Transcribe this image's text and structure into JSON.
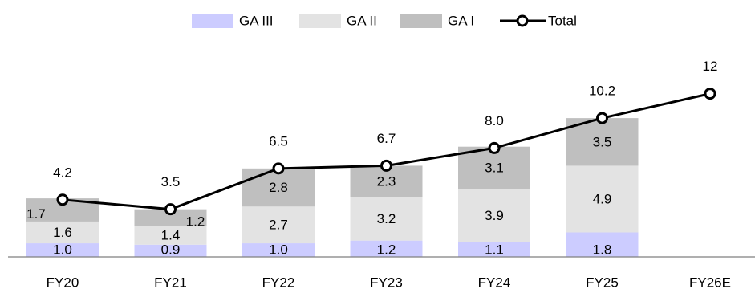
{
  "chart_data": {
    "type": "bar",
    "stacked": true,
    "categories": [
      "FY20",
      "FY21",
      "FY22",
      "FY23",
      "FY24",
      "FY25",
      "FY26E"
    ],
    "series": [
      {
        "name": "GA III",
        "color": "#ccccff",
        "values": [
          1.0,
          0.9,
          1.0,
          1.2,
          1.1,
          1.8,
          null
        ],
        "labels": [
          "1.0",
          "0.9",
          "1.0",
          "1.2",
          "1.1",
          "1.8",
          ""
        ]
      },
      {
        "name": "GA II",
        "color": "#e3e3e3",
        "values": [
          1.6,
          1.4,
          2.7,
          3.2,
          3.9,
          4.9,
          null
        ],
        "labels": [
          "1.6",
          "1.4",
          "2.7",
          "3.2",
          "3.9",
          "4.9",
          ""
        ]
      },
      {
        "name": "GA I",
        "color": "#bfbfbf",
        "values": [
          1.7,
          1.2,
          2.8,
          2.3,
          3.1,
          3.5,
          null
        ],
        "labels": [
          "1.7",
          "1.2",
          "2.8",
          "2.3",
          "3.1",
          "3.5",
          ""
        ]
      }
    ],
    "line": {
      "name": "Total",
      "values": [
        4.2,
        3.5,
        6.5,
        6.7,
        8.0,
        10.2,
        12
      ],
      "labels": [
        "4.2",
        "3.5",
        "6.5",
        "6.7",
        "8.0",
        "10.2",
        "12"
      ],
      "color": "#000000"
    },
    "title": "",
    "xlabel": "",
    "ylabel": "",
    "ylim": [
      0,
      13.7
    ],
    "grid": false,
    "legend_position": "top-center"
  }
}
